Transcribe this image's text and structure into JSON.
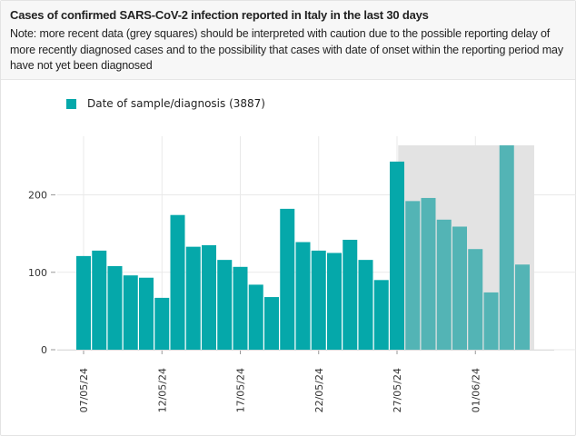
{
  "header": {
    "title": "Cases of confirmed SARS-CoV-2 infection reported in Italy in the last 30 days",
    "note": "Note: more recent data (grey squares) should be interpreted with caution due to the possible reporting delay of more recently diagnosed cases and to the possibility that cases with date of onset within the reporting period may have not yet been diagnosed"
  },
  "colors": {
    "bar": "#05a8aa",
    "bar_recent": "#53b4b5",
    "grey_area": "#e3e3e3",
    "grid": "#e9e9e9"
  },
  "chart_data": {
    "type": "bar",
    "title": "Cases of confirmed SARS-CoV-2 infection reported in Italy in the last 30 days",
    "series": [
      {
        "name": "Date of sample/diagnosis (3887)",
        "values": [
          121,
          128,
          108,
          96,
          93,
          67,
          174,
          133,
          135,
          116,
          107,
          84,
          68,
          182,
          139,
          128,
          125,
          142,
          116,
          90,
          243,
          192,
          196,
          168,
          159,
          130,
          74,
          264,
          110
        ]
      }
    ],
    "x": [
      "2024-05-07",
      "2024-05-08",
      "2024-05-09",
      "2024-05-10",
      "2024-05-11",
      "2024-05-12",
      "2024-05-13",
      "2024-05-14",
      "2024-05-15",
      "2024-05-16",
      "2024-05-17",
      "2024-05-18",
      "2024-05-19",
      "2024-05-20",
      "2024-05-21",
      "2024-05-22",
      "2024-05-23",
      "2024-05-24",
      "2024-05-25",
      "2024-05-26",
      "2024-05-27",
      "2024-05-28",
      "2024-05-29",
      "2024-05-30",
      "2024-05-31",
      "2024-06-01",
      "2024-06-02",
      "2024-06-03",
      "2024-06-04"
    ],
    "recent_from_index": 21,
    "ylim": [
      0,
      264
    ],
    "yticks": [
      0,
      100,
      200
    ],
    "xtick_labels": [
      "07/05/24",
      "12/05/24",
      "17/05/24",
      "22/05/24",
      "27/05/24",
      "01/06/24"
    ],
    "xtick_indices": [
      0,
      5,
      10,
      15,
      20,
      25
    ],
    "grid": true,
    "legend_position": "top-left"
  }
}
